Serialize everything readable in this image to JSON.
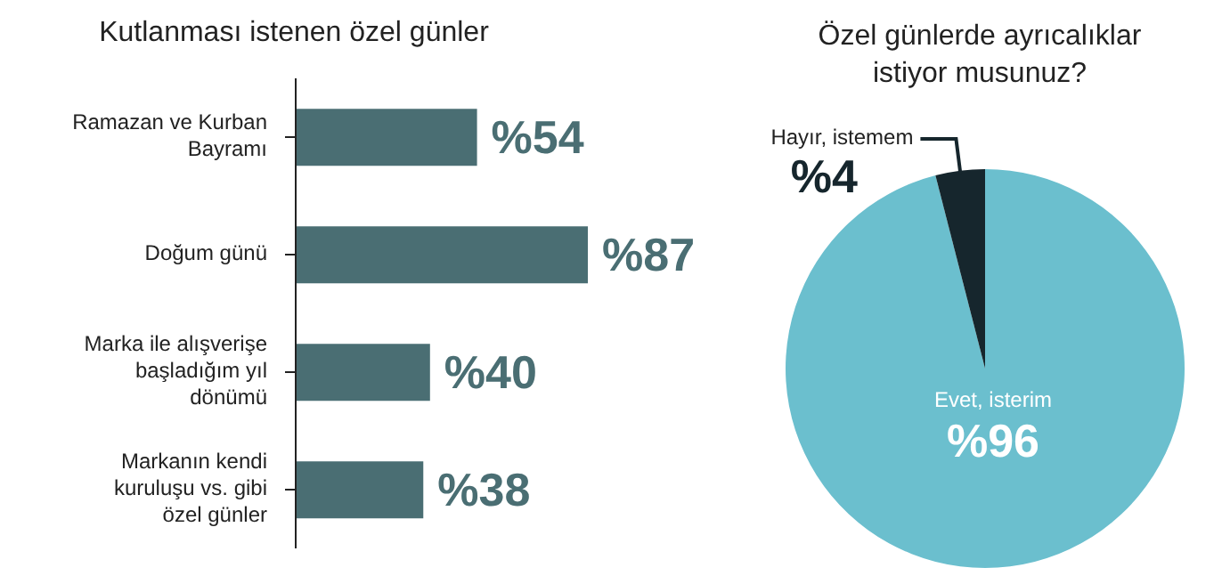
{
  "chart_data": [
    {
      "type": "bar",
      "orientation": "horizontal",
      "title": "Kutlanması istenen özel günler",
      "categories": [
        "Ramazan ve Kurban Bayramı",
        "Doğum günü",
        "Marka ile alışverişe başladığım yıl dönümü",
        "Markanın kendi kuruluşu vs. gibi özel günler"
      ],
      "values": [
        54,
        87,
        40,
        38
      ],
      "color": "#4a6e73",
      "value_labels": [
        "%54",
        "%87",
        "%40",
        "%38"
      ]
    },
    {
      "type": "pie",
      "title": "Özel günlerde ayrıcalıklar istiyor musunuz?",
      "categories": [
        "Evet, isterim",
        "Hayır, istemem"
      ],
      "values": [
        96,
        4
      ],
      "colors": [
        "#6bbfce",
        "#16262d"
      ],
      "value_labels": [
        "%96",
        "%4"
      ]
    }
  ]
}
